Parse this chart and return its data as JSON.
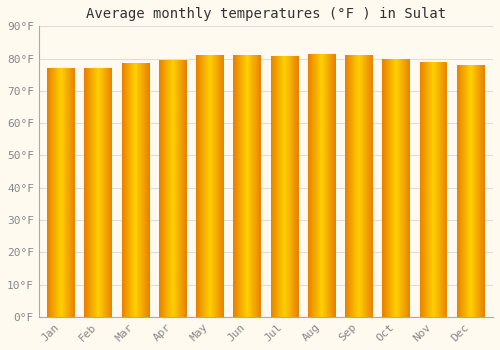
{
  "title": "Average monthly temperatures (°F ) in Sulat",
  "months": [
    "Jan",
    "Feb",
    "Mar",
    "Apr",
    "May",
    "Jun",
    "Jul",
    "Aug",
    "Sep",
    "Oct",
    "Nov",
    "Dec"
  ],
  "values": [
    77.0,
    77.2,
    78.5,
    79.5,
    81.0,
    81.0,
    80.7,
    81.5,
    81.0,
    80.0,
    79.0,
    78.0
  ],
  "bar_color_left": "#E88000",
  "bar_color_center": "#FFD000",
  "bar_color_right": "#E88000",
  "background_color": "#FFFAF0",
  "grid_color": "#DDDDDD",
  "text_color": "#888888",
  "ylim": [
    0,
    90
  ],
  "yticks": [
    0,
    10,
    20,
    30,
    40,
    50,
    60,
    70,
    80,
    90
  ],
  "ytick_labels": [
    "0°F",
    "10°F",
    "20°F",
    "30°F",
    "40°F",
    "50°F",
    "60°F",
    "70°F",
    "80°F",
    "90°F"
  ],
  "title_fontsize": 10,
  "tick_fontsize": 8,
  "font_family": "monospace"
}
